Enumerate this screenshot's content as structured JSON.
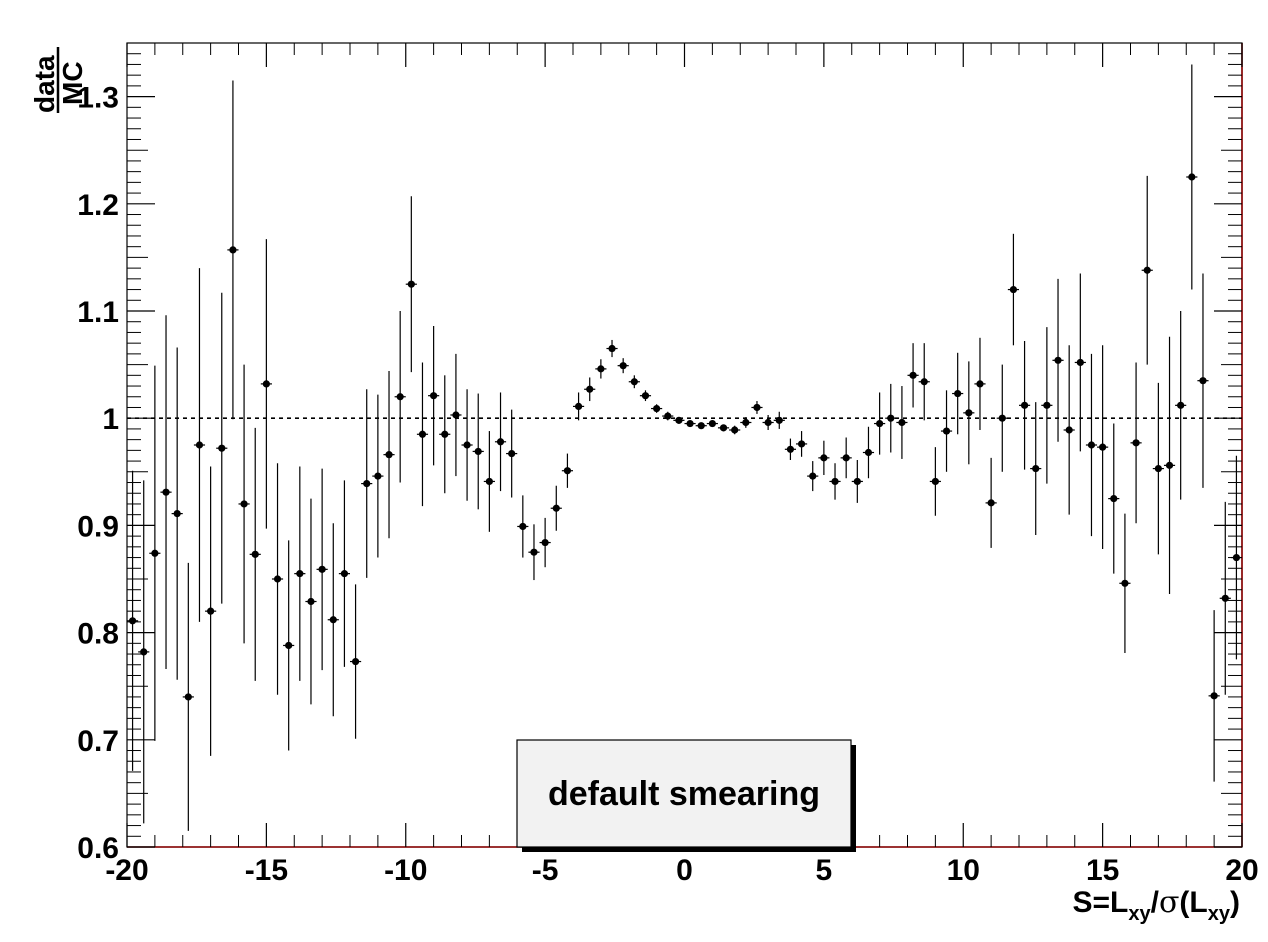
{
  "chart_data": {
    "type": "scatter",
    "title": "",
    "xlabel": {
      "main": "S=L",
      "sub1": "xy",
      "mid": "/",
      "sigma": "σ",
      "open": "(L",
      "sub2": "xy",
      "close": ")"
    },
    "ylabel": {
      "numerator": "data",
      "denominator": "MC"
    },
    "xlim": [
      -20,
      20
    ],
    "ylim": [
      0.6,
      1.35
    ],
    "x_ticks": [
      -20,
      -15,
      -10,
      -5,
      0,
      5,
      10,
      15,
      20
    ],
    "x_tick_labels": [
      "-20",
      "-15",
      "-10",
      "-5",
      "0",
      "5",
      "10",
      "15",
      "20"
    ],
    "y_ticks": [
      0.6,
      0.7,
      0.8,
      0.9,
      1.0,
      1.1,
      1.2,
      1.3
    ],
    "y_tick_labels": [
      "0.6",
      "0.7",
      "0.8",
      "0.9",
      "1",
      "1.1",
      "1.2",
      "1.3"
    ],
    "reference_line": 1.0,
    "legend": {
      "text": "default smearing",
      "placement": "bottom-center"
    },
    "grid": false,
    "series": [
      {
        "x": [
          -19.8,
          -19.4,
          -19.0,
          -18.6,
          -18.2,
          -17.8,
          -17.4,
          -17.0,
          -16.6,
          -16.2,
          -15.8,
          -15.4,
          -15.0,
          -14.6,
          -14.2,
          -13.8,
          -13.4,
          -13.0,
          -12.6,
          -12.2,
          -11.8,
          -11.4,
          -11.0,
          -10.6,
          -10.2,
          -9.8,
          -9.4,
          -9.0,
          -8.6,
          -8.2,
          -7.8,
          -7.4,
          -7.0,
          -6.6,
          -6.2,
          -5.8,
          -5.4,
          -5.0,
          -4.6,
          -4.2,
          -3.8,
          -3.4,
          -3.0,
          -2.6,
          -2.2,
          -1.8,
          -1.4,
          -1.0,
          -0.6,
          -0.2,
          0.2,
          0.6,
          1.0,
          1.4,
          1.8,
          2.2,
          2.6,
          3.0,
          3.4,
          3.8,
          4.2,
          4.6,
          5.0,
          5.4,
          5.8,
          6.2,
          6.6,
          7.0,
          7.4,
          7.8,
          8.2,
          8.6,
          9.0,
          9.4,
          9.8,
          10.2,
          10.6,
          11.0,
          11.4,
          11.8,
          12.2,
          12.6,
          13.0,
          13.4,
          13.8,
          14.2,
          14.6,
          15.0,
          15.4,
          15.8,
          16.2,
          16.6,
          17.0,
          17.4,
          17.8,
          18.2,
          18.6,
          19.0,
          19.4,
          19.8
        ],
        "y": [
          0.811,
          0.782,
          0.874,
          0.931,
          0.911,
          0.74,
          0.975,
          0.82,
          0.972,
          1.157,
          0.92,
          0.873,
          1.032,
          0.85,
          0.788,
          0.855,
          0.829,
          0.859,
          0.812,
          0.855,
          0.773,
          0.939,
          0.946,
          0.966,
          1.02,
          1.125,
          0.985,
          1.021,
          0.985,
          1.003,
          0.975,
          0.969,
          0.941,
          0.978,
          0.967,
          0.899,
          0.875,
          0.884,
          0.916,
          0.951,
          1.011,
          1.027,
          1.046,
          1.065,
          1.049,
          1.034,
          1.021,
          1.009,
          1.002,
          0.998,
          0.995,
          0.993,
          0.995,
          0.991,
          0.989,
          0.996,
          1.01,
          0.996,
          0.998,
          0.971,
          0.976,
          0.946,
          0.963,
          0.941,
          0.963,
          0.941,
          0.968,
          0.995,
          1.0,
          0.996,
          1.04,
          1.034,
          0.941,
          0.988,
          1.023,
          1.005,
          1.032,
          0.921,
          1.0,
          1.12,
          1.012,
          0.953,
          1.012,
          1.054,
          0.989,
          1.052,
          0.975,
          0.973,
          0.925,
          0.846,
          0.977,
          1.138,
          0.953,
          0.956,
          1.012,
          1.225,
          1.035,
          0.741,
          0.832,
          0.87
        ],
        "err": [
          0.14,
          0.16,
          0.175,
          0.165,
          0.155,
          0.125,
          0.165,
          0.135,
          0.145,
          0.158,
          0.13,
          0.118,
          0.135,
          0.108,
          0.098,
          0.1,
          0.096,
          0.094,
          0.09,
          0.087,
          0.072,
          0.088,
          0.076,
          0.078,
          0.08,
          0.082,
          0.067,
          0.065,
          0.055,
          0.057,
          0.052,
          0.054,
          0.047,
          0.046,
          0.041,
          0.029,
          0.026,
          0.023,
          0.021,
          0.016,
          0.013,
          0.011,
          0.009,
          0.008,
          0.007,
          0.006,
          0.005,
          0.004,
          0.004,
          0.003,
          0.003,
          0.003,
          0.003,
          0.003,
          0.004,
          0.005,
          0.006,
          0.007,
          0.008,
          0.01,
          0.012,
          0.014,
          0.016,
          0.017,
          0.019,
          0.02,
          0.024,
          0.029,
          0.032,
          0.034,
          0.03,
          0.036,
          0.032,
          0.038,
          0.038,
          0.048,
          0.043,
          0.042,
          0.05,
          0.052,
          0.06,
          0.062,
          0.073,
          0.076,
          0.079,
          0.083,
          0.085,
          0.095,
          0.07,
          0.065,
          0.075,
          0.088,
          0.08,
          0.12,
          0.088,
          0.105,
          0.1,
          0.08,
          0.09,
          0.095
        ]
      }
    ]
  }
}
